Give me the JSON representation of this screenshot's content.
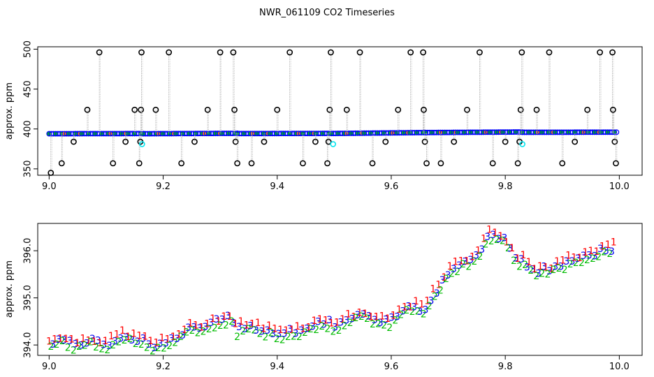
{
  "figure": {
    "title": "NWR_061109  CO2 Timeseries"
  },
  "chart_data": [
    {
      "type": "scatter",
      "panel": "top",
      "ylabel": "approx. ppm",
      "xlim": [
        8.98,
        10.04
      ],
      "ylim": [
        342,
        503
      ],
      "xticks": [
        "9.0",
        "9.2",
        "9.4",
        "9.6",
        "9.8",
        "10.0"
      ],
      "yticks": [
        "350",
        "400",
        "450",
        "500"
      ],
      "segments": [
        {
          "x0": 9.0,
          "x1": 9.165,
          "y0": 394.0,
          "y1": 394.2
        },
        {
          "x0": 9.165,
          "x1": 9.33,
          "y0": 394.0,
          "y1": 394.5
        },
        {
          "x0": 9.33,
          "x1": 9.495,
          "y0": 394.2,
          "y1": 394.4
        },
        {
          "x0": 9.495,
          "x1": 9.66,
          "y0": 394.3,
          "y1": 395.5
        },
        {
          "x0": 9.66,
          "x1": 9.83,
          "y0": 395.5,
          "y1": 396.2
        },
        {
          "x0": 9.83,
          "x1": 9.995,
          "y0": 395.8,
          "y1": 396.0
        }
      ],
      "outliers": [
        [
          9.003,
          345
        ],
        [
          9.022,
          357
        ],
        [
          9.043,
          384
        ],
        [
          9.067,
          424
        ],
        [
          9.088,
          496
        ],
        [
          9.112,
          357
        ],
        [
          9.134,
          384
        ],
        [
          9.15,
          424
        ],
        [
          9.158,
          357
        ],
        [
          9.16,
          384
        ],
        [
          9.161,
          424
        ],
        [
          9.162,
          496
        ],
        [
          9.187,
          424
        ],
        [
          9.21,
          496
        ],
        [
          9.232,
          357
        ],
        [
          9.255,
          384
        ],
        [
          9.278,
          424
        ],
        [
          9.3,
          496
        ],
        [
          9.323,
          496
        ],
        [
          9.325,
          424
        ],
        [
          9.327,
          384
        ],
        [
          9.33,
          357
        ],
        [
          9.355,
          357
        ],
        [
          9.377,
          384
        ],
        [
          9.4,
          424
        ],
        [
          9.422,
          496
        ],
        [
          9.445,
          357
        ],
        [
          9.467,
          384
        ],
        [
          9.488,
          357
        ],
        [
          9.49,
          384
        ],
        [
          9.492,
          424
        ],
        [
          9.494,
          496
        ],
        [
          9.522,
          424
        ],
        [
          9.545,
          496
        ],
        [
          9.567,
          357
        ],
        [
          9.59,
          384
        ],
        [
          9.612,
          424
        ],
        [
          9.634,
          496
        ],
        [
          9.656,
          496
        ],
        [
          9.657,
          424
        ],
        [
          9.659,
          384
        ],
        [
          9.662,
          357
        ],
        [
          9.687,
          357
        ],
        [
          9.71,
          384
        ],
        [
          9.733,
          424
        ],
        [
          9.755,
          496
        ],
        [
          9.778,
          357
        ],
        [
          9.8,
          384
        ],
        [
          9.822,
          357
        ],
        [
          9.825,
          384
        ],
        [
          9.827,
          424
        ],
        [
          9.829,
          496
        ],
        [
          9.855,
          424
        ],
        [
          9.877,
          496
        ],
        [
          9.9,
          357
        ],
        [
          9.922,
          384
        ],
        [
          9.944,
          424
        ],
        [
          9.966,
          496
        ],
        [
          9.988,
          496
        ],
        [
          9.989,
          424
        ],
        [
          9.992,
          384
        ],
        [
          9.994,
          357
        ]
      ],
      "cyan_points": [
        [
          9.163,
          381
        ],
        [
          9.498,
          381
        ],
        [
          9.83,
          381
        ]
      ],
      "colors": {
        "main": "#0000ff",
        "fill": "#00cc00",
        "outlier": "#000000",
        "cyan": "#00e5ee",
        "line": "#aaaaaa",
        "orange": "#ff8c00"
      }
    },
    {
      "type": "scatter",
      "panel": "bottom",
      "ylabel": "approx. ppm",
      "xlim": [
        8.98,
        10.04
      ],
      "ylim": [
        393.78,
        396.58
      ],
      "xticks": [
        "9.0",
        "9.2",
        "9.4",
        "9.6",
        "9.8",
        "10.0"
      ],
      "yticks": [
        "394.0",
        "395.0",
        "396.0"
      ],
      "markers": [
        "1",
        "2",
        "3"
      ],
      "marker_colors": {
        "1": "#ff0000",
        "2": "#00bb00",
        "3": "#0000ee"
      },
      "series_x": [
        9.0,
        9.01,
        9.02,
        9.03,
        9.04,
        9.05,
        9.06,
        9.07,
        9.08,
        9.09,
        9.1,
        9.11,
        9.12,
        9.13,
        9.14,
        9.15,
        9.16,
        9.17,
        9.18,
        9.19,
        9.2,
        9.21,
        9.22,
        9.23,
        9.24,
        9.25,
        9.26,
        9.27,
        9.28,
        9.29,
        9.3,
        9.31,
        9.32,
        9.33,
        9.34,
        9.35,
        9.36,
        9.37,
        9.38,
        9.39,
        9.4,
        9.41,
        9.42,
        9.43,
        9.44,
        9.45,
        9.46,
        9.47,
        9.48,
        9.49,
        9.5,
        9.51,
        9.52,
        9.53,
        9.54,
        9.55,
        9.56,
        9.57,
        9.58,
        9.59,
        9.6,
        9.61,
        9.62,
        9.63,
        9.64,
        9.65,
        9.66,
        9.67,
        9.68,
        9.69,
        9.7,
        9.71,
        9.72,
        9.73,
        9.74,
        9.75,
        9.76,
        9.77,
        9.78,
        9.79,
        9.8,
        9.81,
        9.82,
        9.83,
        9.84,
        9.85,
        9.86,
        9.87,
        9.88,
        9.89,
        9.9,
        9.91,
        9.92,
        9.93,
        9.94,
        9.95,
        9.96,
        9.97,
        9.98,
        9.99
      ],
      "series_y": [
        394.0,
        394.08,
        394.12,
        394.06,
        394.02,
        394.0,
        394.05,
        394.08,
        394.04,
        394.0,
        393.98,
        394.05,
        394.15,
        394.2,
        394.15,
        394.1,
        394.1,
        394.08,
        394.0,
        393.98,
        394.02,
        394.05,
        394.12,
        394.2,
        394.3,
        394.32,
        394.3,
        394.38,
        394.42,
        394.46,
        394.5,
        394.55,
        394.52,
        394.3,
        394.4,
        394.38,
        394.33,
        394.36,
        394.3,
        394.28,
        394.26,
        394.24,
        394.28,
        394.3,
        394.3,
        394.34,
        394.38,
        394.42,
        394.45,
        394.48,
        394.4,
        394.45,
        394.5,
        394.55,
        394.6,
        394.62,
        394.55,
        394.5,
        394.45,
        394.48,
        394.5,
        394.6,
        394.7,
        394.78,
        394.8,
        394.75,
        394.78,
        395.0,
        395.15,
        395.35,
        395.5,
        395.62,
        395.7,
        395.75,
        395.8,
        395.9,
        396.1,
        396.3,
        396.35,
        396.3,
        396.2,
        396.05,
        395.75,
        395.8,
        395.62,
        395.6,
        395.55,
        395.6,
        395.58,
        395.65,
        395.7,
        395.75,
        395.8,
        395.82,
        395.85,
        395.9,
        395.95,
        395.98,
        396.0,
        396.05
      ]
    }
  ]
}
